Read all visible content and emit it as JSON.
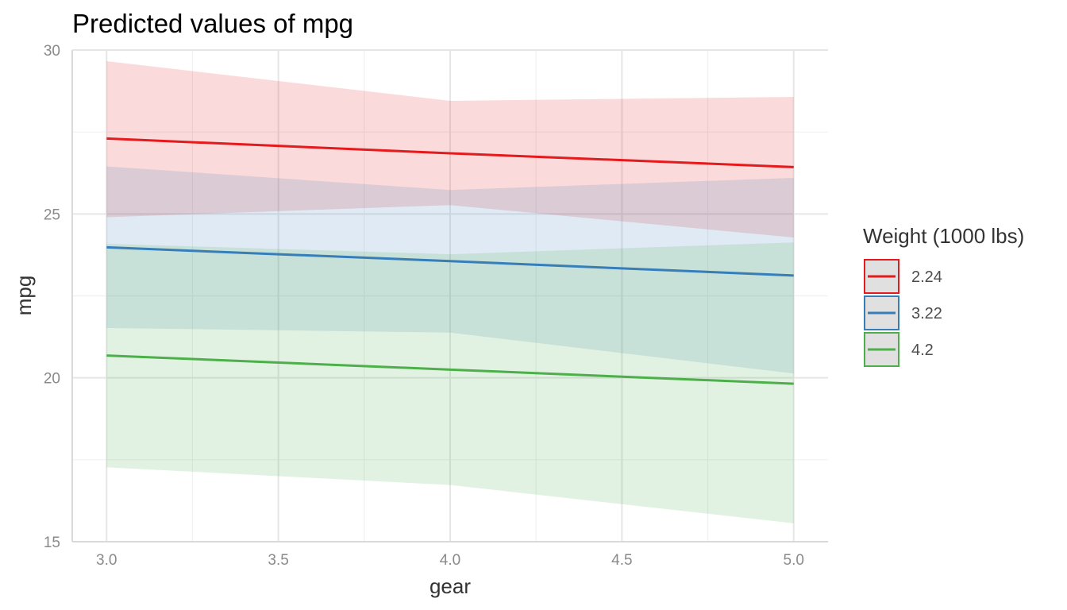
{
  "chart_data": {
    "type": "line",
    "title": "Predicted values of mpg",
    "xlabel": "gear",
    "ylabel": "mpg",
    "xlim": [
      2.9,
      5.1
    ],
    "ylim": [
      15,
      30
    ],
    "x_ticks": [
      3.0,
      3.5,
      4.0,
      4.5,
      5.0
    ],
    "x_tick_labels": [
      "3.0",
      "3.5",
      "4.0",
      "4.5",
      "5.0"
    ],
    "y_ticks": [
      15,
      20,
      25,
      30
    ],
    "y_tick_labels": [
      "15",
      "20",
      "25",
      "30"
    ],
    "grid": true,
    "legend": {
      "title": "Weight (1000 lbs)",
      "position": "right"
    },
    "x": [
      3,
      4,
      5
    ],
    "series": [
      {
        "name": "2.24",
        "color": "#e41a1c",
        "values": [
          27.3,
          26.85,
          26.43
        ],
        "ci_low": [
          24.9,
          25.27,
          24.28
        ],
        "ci_high": [
          29.66,
          28.45,
          28.57
        ]
      },
      {
        "name": "3.22",
        "color": "#377eb8",
        "values": [
          23.98,
          23.56,
          23.12
        ],
        "ci_low": [
          21.52,
          21.38,
          20.13
        ],
        "ci_high": [
          26.45,
          25.73,
          26.1
        ]
      },
      {
        "name": "4.2",
        "color": "#4daf4a",
        "values": [
          20.68,
          20.25,
          19.82
        ],
        "ci_low": [
          17.27,
          16.73,
          15.56
        ],
        "ci_high": [
          24.09,
          23.77,
          24.13
        ]
      }
    ]
  }
}
